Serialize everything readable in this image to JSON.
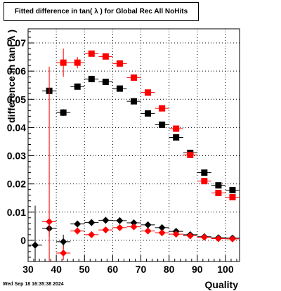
{
  "title": "Fitted difference in tan( λ ) for Global Rec All NoHits",
  "timestamp": "Wed Sep 18 16:35:38 2024",
  "chart_data": {
    "type": "scatter",
    "xlabel": "Quality",
    "ylabel": "difference in tan( λ )",
    "xlim": [
      30,
      105
    ],
    "ylim": [
      -0.0075,
      0.075
    ],
    "grid": true,
    "x_ticks": [
      30,
      40,
      50,
      60,
      70,
      80,
      90,
      100
    ],
    "y_ticks": [
      0,
      0.01,
      0.02,
      0.03,
      0.04,
      0.05,
      0.06,
      0.07
    ],
    "x_tick_labels": [
      "30",
      "40",
      "50",
      "60",
      "70",
      "80",
      "90",
      "100"
    ],
    "y_tick_labels": [
      "0",
      "0.01",
      "0.02",
      "0.03",
      "0.04",
      "0.05",
      "0.06",
      "0.07"
    ],
    "series": [
      {
        "marker": "square",
        "color": "#000000",
        "points": [
          {
            "x": 37.5,
            "y": 0.053,
            "yerr": 0.0
          },
          {
            "x": 42.5,
            "y": 0.0453,
            "yerr": 0.0012
          },
          {
            "x": 47.5,
            "y": 0.0545,
            "yerr": 0.0005
          },
          {
            "x": 52.5,
            "y": 0.0572,
            "yerr": 0.0004
          },
          {
            "x": 57.5,
            "y": 0.0562,
            "yerr": 0.0004
          },
          {
            "x": 62.5,
            "y": 0.0538,
            "yerr": 0.0003
          },
          {
            "x": 67.5,
            "y": 0.0493,
            "yerr": 0.0003
          },
          {
            "x": 72.5,
            "y": 0.045,
            "yerr": 0.0003
          },
          {
            "x": 77.5,
            "y": 0.041,
            "yerr": 0.0003
          },
          {
            "x": 82.5,
            "y": 0.0365,
            "yerr": 0.0003
          },
          {
            "x": 87.5,
            "y": 0.031,
            "yerr": 0.0003
          },
          {
            "x": 92.5,
            "y": 0.024,
            "yerr": 0.0003
          },
          {
            "x": 97.5,
            "y": 0.0195,
            "yerr": 0.0003
          },
          {
            "x": 102.5,
            "y": 0.0178,
            "yerr": 0.0003
          }
        ]
      },
      {
        "marker": "square",
        "color": "#ff0000",
        "points": [
          {
            "x": 42.5,
            "y": 0.063,
            "yerr": 0.005
          },
          {
            "x": 47.5,
            "y": 0.063,
            "yerr": 0.002
          },
          {
            "x": 52.5,
            "y": 0.0662,
            "yerr": 0.0008
          },
          {
            "x": 57.5,
            "y": 0.0652,
            "yerr": 0.0006
          },
          {
            "x": 62.5,
            "y": 0.0627,
            "yerr": 0.0005
          },
          {
            "x": 67.5,
            "y": 0.0577,
            "yerr": 0.0004
          },
          {
            "x": 72.5,
            "y": 0.0524,
            "yerr": 0.0004
          },
          {
            "x": 77.5,
            "y": 0.0468,
            "yerr": 0.0003
          },
          {
            "x": 82.5,
            "y": 0.0396,
            "yerr": 0.0003
          },
          {
            "x": 87.5,
            "y": 0.0303,
            "yerr": 0.0003
          },
          {
            "x": 92.5,
            "y": 0.021,
            "yerr": 0.0003
          },
          {
            "x": 97.5,
            "y": 0.0168,
            "yerr": 0.0003
          },
          {
            "x": 102.5,
            "y": 0.0153,
            "yerr": 0.0003
          }
        ]
      },
      {
        "marker": "diamond",
        "color": "#000000",
        "points": [
          {
            "x": 32.5,
            "y": -0.0017,
            "yerr": 0.014
          },
          {
            "x": 37.5,
            "y": 0.0042,
            "yerr": 0.003
          },
          {
            "x": 42.5,
            "y": -0.0005,
            "yerr": 0.0025
          },
          {
            "x": 47.5,
            "y": 0.0058,
            "yerr": 0.0008
          },
          {
            "x": 52.5,
            "y": 0.0063,
            "yerr": 0.0005
          },
          {
            "x": 57.5,
            "y": 0.0071,
            "yerr": 0.0004
          },
          {
            "x": 62.5,
            "y": 0.007,
            "yerr": 0.0003
          },
          {
            "x": 67.5,
            "y": 0.0062,
            "yerr": 0.0003
          },
          {
            "x": 72.5,
            "y": 0.0055,
            "yerr": 0.0003
          },
          {
            "x": 77.5,
            "y": 0.0045,
            "yerr": 0.0003
          },
          {
            "x": 82.5,
            "y": 0.0032,
            "yerr": 0.0003
          },
          {
            "x": 87.5,
            "y": 0.002,
            "yerr": 0.0003
          },
          {
            "x": 92.5,
            "y": 0.0013,
            "yerr": 0.0003
          },
          {
            "x": 97.5,
            "y": 0.0009,
            "yerr": 0.0003
          },
          {
            "x": 102.5,
            "y": 0.0008,
            "yerr": 0.0003
          }
        ]
      },
      {
        "marker": "diamond",
        "color": "#ff0000",
        "points": [
          {
            "x": 37.5,
            "y": 0.0066,
            "yerr": 0.055
          },
          {
            "x": 42.5,
            "y": -0.0045,
            "yerr": 0.0025
          },
          {
            "x": 47.5,
            "y": 0.0033,
            "yerr": 0.0012
          },
          {
            "x": 52.5,
            "y": 0.002,
            "yerr": 0.0006
          },
          {
            "x": 57.5,
            "y": 0.0037,
            "yerr": 0.0005
          },
          {
            "x": 62.5,
            "y": 0.0045,
            "yerr": 0.0004
          },
          {
            "x": 67.5,
            "y": 0.0048,
            "yerr": 0.0003
          },
          {
            "x": 72.5,
            "y": 0.0033,
            "yerr": 0.0003
          },
          {
            "x": 77.5,
            "y": 0.0027,
            "yerr": 0.0003
          },
          {
            "x": 82.5,
            "y": 0.0022,
            "yerr": 0.0003
          },
          {
            "x": 87.5,
            "y": 0.0016,
            "yerr": 0.0003
          },
          {
            "x": 92.5,
            "y": 0.0011,
            "yerr": 0.0003
          },
          {
            "x": 97.5,
            "y": 0.0006,
            "yerr": 0.0003
          },
          {
            "x": 102.5,
            "y": 0.0005,
            "yerr": 0.0003
          }
        ]
      }
    ]
  }
}
